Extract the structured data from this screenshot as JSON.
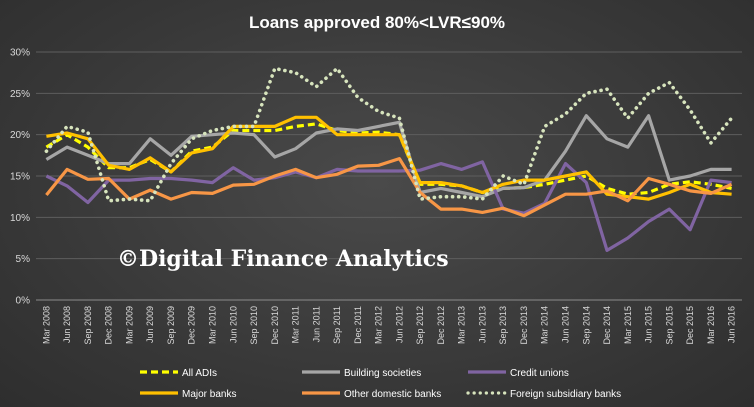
{
  "chart_data": {
    "type": "line",
    "title": "Loans  approved  80%<LVR≤90%",
    "watermark": "©Digital Finance Analytics",
    "xlabel": "",
    "ylabel": "",
    "ylim": [
      0,
      30
    ],
    "yticks": [
      "0%",
      "5%",
      "10%",
      "15%",
      "20%",
      "25%",
      "30%"
    ],
    "grid": true,
    "legend_position": "bottom",
    "categories": [
      "Mar 2008",
      "Jun 2008",
      "Sep 2008",
      "Dec 2008",
      "Mar 2009",
      "Jun 2009",
      "Sep 2009",
      "Dec 2009",
      "Mar 2010",
      "Jun 2010",
      "Sep 2010",
      "Dec 2010",
      "Mar 2011",
      "Jun 2011",
      "Sep 2011",
      "Dec 2011",
      "Mar 2012",
      "Jun 2012",
      "Sep 2012",
      "Dec 2012",
      "Mar 2013",
      "Jun 2013",
      "Sep 2013",
      "Dec 2013",
      "Mar 2014",
      "Jun 2014",
      "Sep 2014",
      "Dec 2014",
      "Mar 2015",
      "Jun 2015",
      "Sep 2015",
      "Dec 2015",
      "Mar 2016",
      "Jun 2016"
    ],
    "series": [
      {
        "name": "All ADIs",
        "color": "#ffff00",
        "style": "dashed",
        "values": [
          18.5,
          20,
          18.5,
          16,
          16,
          17,
          15.5,
          18,
          18.5,
          20.5,
          20.5,
          20.5,
          21,
          21.3,
          20.5,
          20.2,
          20.3,
          20,
          14,
          14,
          13.8,
          13,
          13.5,
          13.6,
          14,
          14.5,
          15,
          13.5,
          12.8,
          13,
          14,
          14.3,
          14,
          13.5
        ]
      },
      {
        "name": "Building societies",
        "color": "#a6a6a6",
        "style": "solid",
        "values": [
          17,
          18.5,
          17.5,
          16.5,
          16.5,
          19.5,
          17.5,
          19.8,
          20,
          20.2,
          20,
          17.3,
          18.3,
          20.2,
          20.7,
          20.5,
          21,
          21.5,
          13,
          13.5,
          13,
          12.5,
          13.5,
          13.6,
          14.5,
          18,
          22.3,
          19.5,
          18.5,
          22.3,
          14.5,
          15,
          15.8,
          15.8
        ]
      },
      {
        "name": "Credit unions",
        "color": "#8064a2",
        "style": "solid",
        "values": [
          15,
          13.8,
          11.8,
          14.5,
          14.5,
          14.7,
          14.7,
          14.5,
          14.2,
          16,
          14.5,
          14.8,
          15.5,
          14.8,
          15.8,
          15.6,
          15.6,
          15.6,
          15.7,
          16.5,
          15.8,
          16.7,
          11,
          10.5,
          11.7,
          16.5,
          14.2,
          6,
          7.5,
          9.5,
          11,
          8.5,
          14.5,
          14.2
        ]
      },
      {
        "name": "Major banks",
        "color": "#ffc000",
        "style": "solid",
        "values": [
          19.8,
          20.2,
          19.5,
          16.3,
          15.8,
          17.2,
          15.5,
          17.8,
          18.3,
          21,
          21,
          21,
          22.1,
          22.1,
          20,
          20,
          20,
          20,
          14.2,
          14.2,
          13.8,
          13,
          14,
          14.5,
          14.5,
          15,
          15.5,
          12.8,
          12.5,
          12.2,
          13,
          14,
          13,
          12.8
        ]
      },
      {
        "name": "Other domestic banks",
        "color": "#f79646",
        "style": "solid",
        "values": [
          12.7,
          15.8,
          14.6,
          14.7,
          12.2,
          13.3,
          12.2,
          13,
          12.9,
          13.9,
          14,
          15,
          15.8,
          14.8,
          15.2,
          16.2,
          16.3,
          17.1,
          13,
          11,
          11,
          10.6,
          11.1,
          10.2,
          11.5,
          12.8,
          12.8,
          13.2,
          12,
          14.7,
          14,
          13.2,
          12.9,
          14
        ]
      },
      {
        "name": "Foreign subsidiary banks",
        "color": "#d7e4bd",
        "style": "dotted",
        "values": [
          18,
          21,
          20.3,
          12,
          12.2,
          12,
          16.5,
          19.5,
          20.5,
          21,
          21,
          28,
          27.5,
          25.8,
          28,
          24.5,
          22.8,
          22,
          12.2,
          12.5,
          12.5,
          12.2,
          15,
          14,
          21,
          22.5,
          25,
          25.5,
          22,
          25,
          26.3,
          23,
          19,
          22
        ]
      }
    ]
  }
}
